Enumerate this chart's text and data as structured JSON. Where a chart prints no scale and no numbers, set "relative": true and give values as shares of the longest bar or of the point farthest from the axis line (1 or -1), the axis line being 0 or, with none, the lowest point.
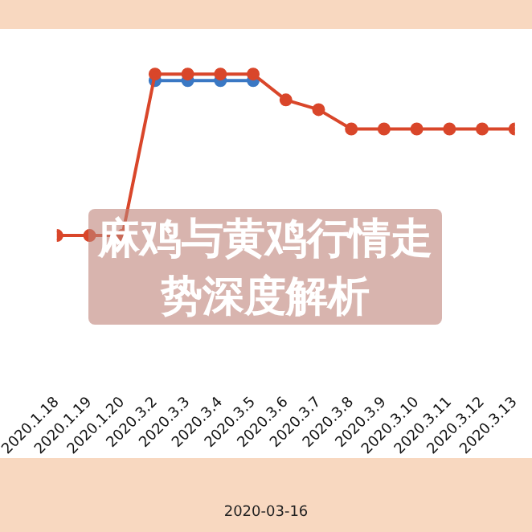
{
  "chart_data": {
    "type": "line",
    "title": "麻鸡与黄鸡行情走势深度解析",
    "annotations": [
      "2020-03-16"
    ],
    "relative": true,
    "marker": "circle",
    "legend": false,
    "categories": [
      "2020.1.18",
      "2020.1.19",
      "2020.1.20",
      "2020.3.2",
      "2020.3.3",
      "2020.3.4",
      "2020.3.5",
      "2020.3.6",
      "2020.3.7",
      "2020.3.8",
      "2020.3.9",
      "2020.3.10",
      "2020.3.11",
      "2020.3.12",
      "2020.3.13"
    ],
    "series": [
      {
        "color": "#d9462a",
        "values": [
          0,
          0,
          0,
          1,
          1,
          1,
          1,
          0.84,
          0.78,
          0.66,
          0.66,
          0.66,
          0.66,
          0.66,
          0.66
        ]
      },
      {
        "color": "#3a78c4",
        "values": [
          null,
          null,
          null,
          0.96,
          0.96,
          0.96,
          0.96,
          null,
          null,
          null,
          null,
          null,
          null,
          null,
          null
        ]
      }
    ]
  }
}
